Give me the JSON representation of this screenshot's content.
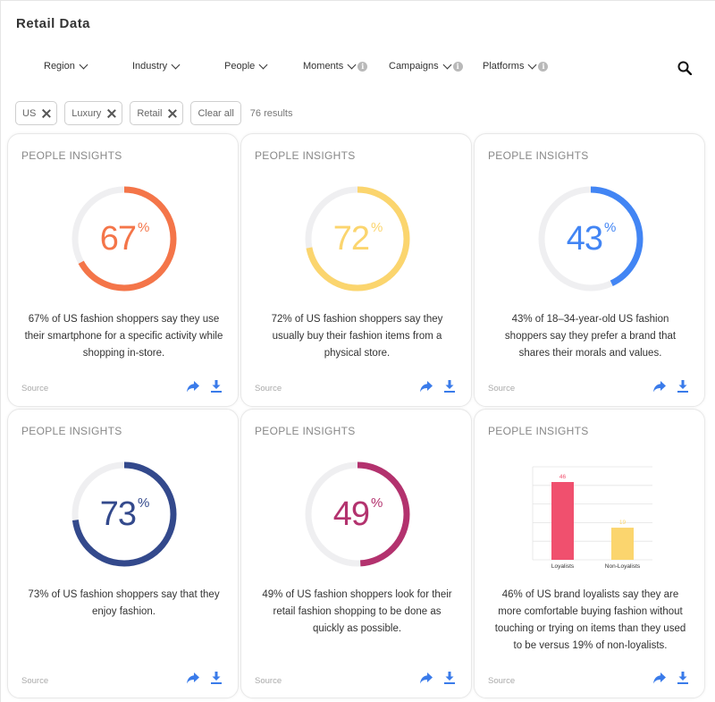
{
  "page": {
    "title": "Retail Data"
  },
  "filters": [
    {
      "label": "Region",
      "info": false
    },
    {
      "label": "Industry",
      "info": false
    },
    {
      "label": "People",
      "info": false
    },
    {
      "label": "Moments",
      "info": true
    },
    {
      "label": "Campaigns",
      "info": true
    },
    {
      "label": "Platforms",
      "info": true
    }
  ],
  "chips": {
    "items": [
      "US",
      "Luxury",
      "Retail"
    ],
    "clear_label": "Clear all",
    "results": "76 results"
  },
  "colors": {
    "orange": "#f47549",
    "yellow": "#fbd56e",
    "blue": "#4285f4",
    "navy": "#33498c",
    "magenta": "#b3326e",
    "track": "#efeff1",
    "red_bar": "#f0506e",
    "yellow_bar": "#fbd56e",
    "action": "#3a7bea"
  },
  "cards": [
    {
      "kicker": "PEOPLE INSIGHTS",
      "value": 67,
      "value_text": "67",
      "pct_sign": "%",
      "color": "#f47549",
      "desc": "67% of US fashion shoppers say they use their smartphone for a specific activity while shopping in-store.",
      "source": "Source"
    },
    {
      "kicker": "PEOPLE INSIGHTS",
      "value": 72,
      "value_text": "72",
      "pct_sign": "%",
      "color": "#fbd56e",
      "desc": "72% of US fashion shoppers say they usually buy their fashion items from a physical store.",
      "source": "Source"
    },
    {
      "kicker": "PEOPLE INSIGHTS",
      "value": 43,
      "value_text": "43",
      "pct_sign": "%",
      "color": "#4285f4",
      "desc": "43% of 18–34-year-old US fashion shoppers say they prefer a brand that shares their morals and values.",
      "source": "Source"
    },
    {
      "kicker": "PEOPLE INSIGHTS",
      "value": 73,
      "value_text": "73",
      "pct_sign": "%",
      "color": "#33498c",
      "desc": "73% of US fashion shoppers say that they enjoy fashion.",
      "source": "Source"
    },
    {
      "kicker": "PEOPLE INSIGHTS",
      "value": 49,
      "value_text": "49",
      "pct_sign": "%",
      "color": "#b3326e",
      "desc": "49% of US fashion shoppers look for their retail fashion shopping to be done as quickly as possible.",
      "source": "Source"
    },
    {
      "kicker": "PEOPLE INSIGHTS",
      "desc": "46% of US brand loyalists say they are more comfortable buying fashion without touching or trying on items than they used to be versus 19% of non-loyalists.",
      "source": "Source"
    }
  ],
  "chart_data": {
    "type": "bar",
    "categories": [
      "Loyalists",
      "Non-Loyalists"
    ],
    "values": [
      46,
      19
    ],
    "value_labels": [
      "46",
      "19"
    ],
    "colors": [
      "#f0506e",
      "#fbd56e"
    ],
    "ylim": [
      0,
      55
    ],
    "grid": true,
    "title": "",
    "xlabel": "",
    "ylabel": ""
  }
}
